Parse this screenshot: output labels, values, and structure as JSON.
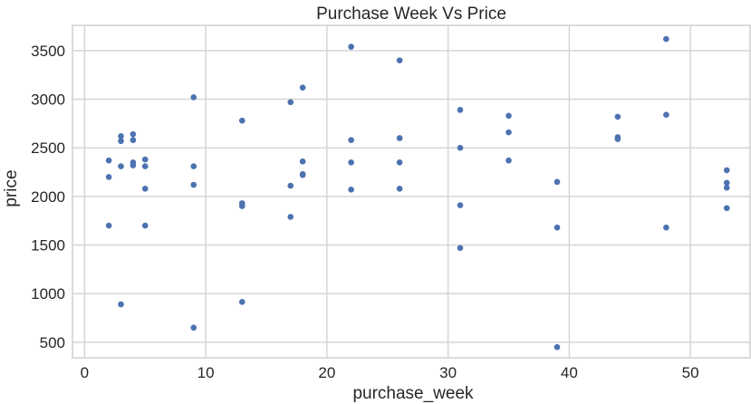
{
  "chart_data": {
    "type": "scatter",
    "title": "Purchase Week Vs Price",
    "xlabel": "purchase_week",
    "ylabel": "price",
    "xlim": [
      -1,
      55
    ],
    "ylim": [
      340,
      3760
    ],
    "xticks": [
      0,
      10,
      20,
      30,
      40,
      50
    ],
    "yticks": [
      500,
      1000,
      1500,
      2000,
      2500,
      3000,
      3500
    ],
    "grid": true,
    "marker_color": "#4c72b0",
    "points": [
      {
        "x": 2,
        "y": 2370
      },
      {
        "x": 2,
        "y": 2200
      },
      {
        "x": 2,
        "y": 1700
      },
      {
        "x": 3,
        "y": 2620
      },
      {
        "x": 3,
        "y": 2570
      },
      {
        "x": 3,
        "y": 2310
      },
      {
        "x": 3,
        "y": 890
      },
      {
        "x": 4,
        "y": 2640
      },
      {
        "x": 4,
        "y": 2580
      },
      {
        "x": 4,
        "y": 2350
      },
      {
        "x": 4,
        "y": 2320
      },
      {
        "x": 5,
        "y": 2380
      },
      {
        "x": 5,
        "y": 2310
      },
      {
        "x": 5,
        "y": 2080
      },
      {
        "x": 5,
        "y": 1700
      },
      {
        "x": 9,
        "y": 3020
      },
      {
        "x": 9,
        "y": 2310
      },
      {
        "x": 9,
        "y": 2120
      },
      {
        "x": 9,
        "y": 650
      },
      {
        "x": 13,
        "y": 2780
      },
      {
        "x": 13,
        "y": 1930
      },
      {
        "x": 13,
        "y": 1900
      },
      {
        "x": 13,
        "y": 915
      },
      {
        "x": 17,
        "y": 2970
      },
      {
        "x": 17,
        "y": 2110
      },
      {
        "x": 17,
        "y": 1790
      },
      {
        "x": 18,
        "y": 3120
      },
      {
        "x": 18,
        "y": 2360
      },
      {
        "x": 18,
        "y": 2230
      },
      {
        "x": 18,
        "y": 2220
      },
      {
        "x": 22,
        "y": 3540
      },
      {
        "x": 22,
        "y": 2580
      },
      {
        "x": 22,
        "y": 2350
      },
      {
        "x": 22,
        "y": 2070
      },
      {
        "x": 26,
        "y": 3400
      },
      {
        "x": 26,
        "y": 2600
      },
      {
        "x": 26,
        "y": 2350
      },
      {
        "x": 26,
        "y": 2080
      },
      {
        "x": 31,
        "y": 2890
      },
      {
        "x": 31,
        "y": 2500
      },
      {
        "x": 31,
        "y": 1910
      },
      {
        "x": 31,
        "y": 1470
      },
      {
        "x": 35,
        "y": 2830
      },
      {
        "x": 35,
        "y": 2660
      },
      {
        "x": 35,
        "y": 2370
      },
      {
        "x": 39,
        "y": 2150
      },
      {
        "x": 39,
        "y": 1680
      },
      {
        "x": 39,
        "y": 450
      },
      {
        "x": 44,
        "y": 2820
      },
      {
        "x": 44,
        "y": 2610
      },
      {
        "x": 44,
        "y": 2590
      },
      {
        "x": 48,
        "y": 3620
      },
      {
        "x": 48,
        "y": 2840
      },
      {
        "x": 48,
        "y": 1680
      },
      {
        "x": 53,
        "y": 2270
      },
      {
        "x": 53,
        "y": 2140
      },
      {
        "x": 53,
        "y": 2090
      },
      {
        "x": 53,
        "y": 1880
      }
    ]
  }
}
